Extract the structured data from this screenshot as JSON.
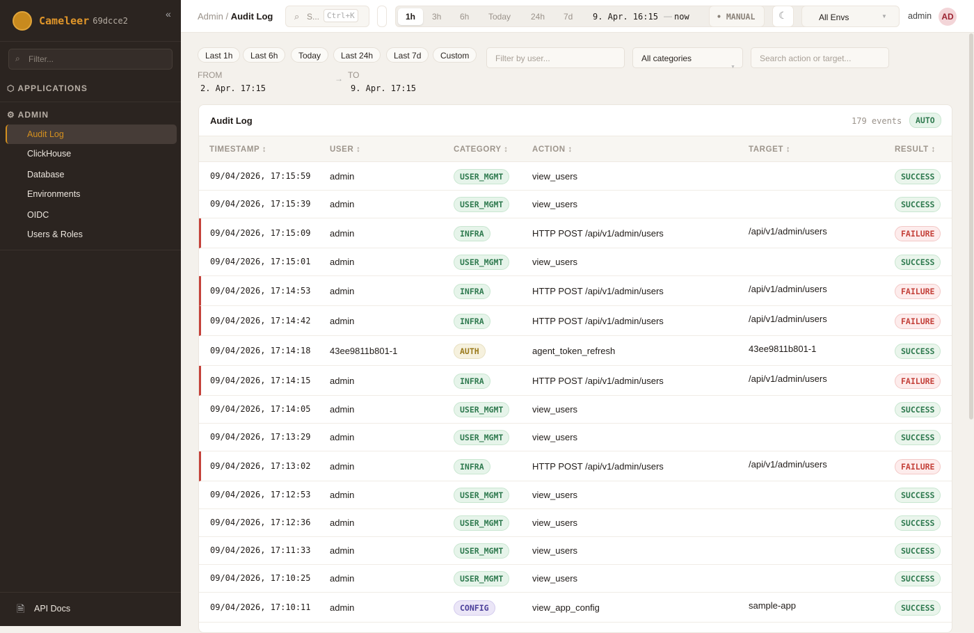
{
  "app": {
    "name": "Cameleer",
    "version": "69dcce2"
  },
  "sidebar": {
    "filter_placeholder": "Filter...",
    "sections": {
      "applications": "APPLICATIONS",
      "admin": "ADMIN"
    },
    "items": [
      {
        "label": "Audit Log",
        "active": true
      },
      {
        "label": "ClickHouse"
      },
      {
        "label": "Database"
      },
      {
        "label": "Environments"
      },
      {
        "label": "OIDC"
      },
      {
        "label": "Users & Roles"
      }
    ],
    "footer": "API Docs"
  },
  "header": {
    "breadcrumb": [
      "Admin",
      "Audit Log"
    ],
    "search_placeholder": "S...",
    "search_shortcut": "Ctrl+K",
    "time_ranges": [
      "1h",
      "3h",
      "6h",
      "Today",
      "24h",
      "7d"
    ],
    "active_range": "1h",
    "range_from": "9. Apr. 16:15",
    "range_sep": "—",
    "range_to": "now",
    "refresh_mode": "MANUAL",
    "env_select": "All Envs",
    "user": "admin",
    "avatar": "AD"
  },
  "filters": {
    "presets": [
      "Last 1h",
      "Last 6h",
      "Today",
      "Last 24h",
      "Last 7d",
      "Custom"
    ],
    "user_placeholder": "Filter by user...",
    "category": "All categories",
    "search_placeholder": "Search action or target...",
    "from_label": "FROM",
    "from_value": "2. Apr. 17:15",
    "to_label": "TO",
    "to_value": "9. Apr. 17:15"
  },
  "table": {
    "title": "Audit Log",
    "count": "179 events",
    "mode": "AUTO",
    "columns": [
      "TIMESTAMP",
      "USER",
      "CATEGORY",
      "ACTION",
      "TARGET",
      "RESULT"
    ],
    "rows": [
      [
        "09/04/2026, 17:15:59",
        "admin",
        "USER_MGMT",
        "view_users",
        "",
        "SUCCESS"
      ],
      [
        "09/04/2026, 17:15:39",
        "admin",
        "USER_MGMT",
        "view_users",
        "",
        "SUCCESS"
      ],
      [
        "09/04/2026, 17:15:09",
        "admin",
        "INFRA",
        "HTTP POST /api/v1/admin/users",
        "/api/v1/admin/users",
        "FAILURE"
      ],
      [
        "09/04/2026, 17:15:01",
        "admin",
        "USER_MGMT",
        "view_users",
        "",
        "SUCCESS"
      ],
      [
        "09/04/2026, 17:14:53",
        "admin",
        "INFRA",
        "HTTP POST /api/v1/admin/users",
        "/api/v1/admin/users",
        "FAILURE"
      ],
      [
        "09/04/2026, 17:14:42",
        "admin",
        "INFRA",
        "HTTP POST /api/v1/admin/users",
        "/api/v1/admin/users",
        "FAILURE"
      ],
      [
        "09/04/2026, 17:14:18",
        "43ee9811b801-1",
        "AUTH",
        "agent_token_refresh",
        "43ee9811b801-1",
        "SUCCESS"
      ],
      [
        "09/04/2026, 17:14:15",
        "admin",
        "INFRA",
        "HTTP POST /api/v1/admin/users",
        "/api/v1/admin/users",
        "FAILURE"
      ],
      [
        "09/04/2026, 17:14:05",
        "admin",
        "USER_MGMT",
        "view_users",
        "",
        "SUCCESS"
      ],
      [
        "09/04/2026, 17:13:29",
        "admin",
        "USER_MGMT",
        "view_users",
        "",
        "SUCCESS"
      ],
      [
        "09/04/2026, 17:13:02",
        "admin",
        "INFRA",
        "HTTP POST /api/v1/admin/users",
        "/api/v1/admin/users",
        "FAILURE"
      ],
      [
        "09/04/2026, 17:12:53",
        "admin",
        "USER_MGMT",
        "view_users",
        "",
        "SUCCESS"
      ],
      [
        "09/04/2026, 17:12:36",
        "admin",
        "USER_MGMT",
        "view_users",
        "",
        "SUCCESS"
      ],
      [
        "09/04/2026, 17:11:33",
        "admin",
        "USER_MGMT",
        "view_users",
        "",
        "SUCCESS"
      ],
      [
        "09/04/2026, 17:10:25",
        "admin",
        "USER_MGMT",
        "view_users",
        "",
        "SUCCESS"
      ],
      [
        "09/04/2026, 17:10:11",
        "admin",
        "CONFIG",
        "view_app_config",
        "sample-app",
        "SUCCESS"
      ]
    ]
  },
  "colors": {
    "accent": "#d4901f",
    "success": "#2f7a4f",
    "failure": "#c4413a",
    "auth": "#9a7a1c",
    "config": "#4b3f9a"
  }
}
